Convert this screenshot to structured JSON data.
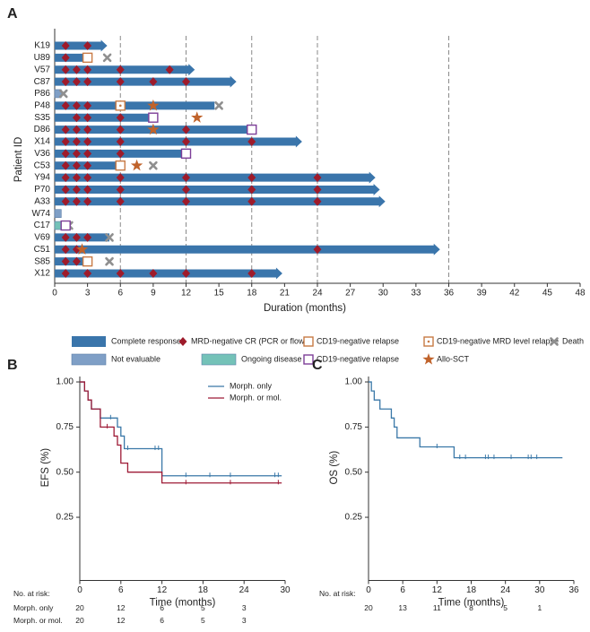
{
  "chart_data": [
    {
      "type": "swimmer",
      "panel": "A",
      "xlabel": "Duration (months)",
      "ylabel": "Patient ID",
      "categories": [
        "K19",
        "U89",
        "V57",
        "C87",
        "P86",
        "P48",
        "S35",
        "D86",
        "X14",
        "V36",
        "C53",
        "Y94",
        "P70",
        "A33",
        "W74",
        "C17",
        "V69",
        "C51",
        "S85",
        "X12"
      ],
      "xlim": [
        0,
        48
      ],
      "xticks": [
        0,
        3,
        6,
        9,
        12,
        15,
        18,
        21,
        24,
        27,
        30,
        33,
        36,
        39,
        42,
        45,
        48
      ],
      "reference_lines": [
        6,
        12,
        18,
        24,
        36
      ],
      "bars": [
        {
          "name": "Complete response",
          "color": "#3a75ab",
          "values": [
            4.8,
            2.6,
            12.8,
            16.6,
            null,
            14.6,
            9,
            18,
            22.6,
            12,
            6,
            29.3,
            29.7,
            30.2,
            null,
            null,
            5,
            35.2,
            3,
            20.8
          ]
        },
        {
          "name": "Not evaluable",
          "color": "#7f9fc6",
          "values": [
            null,
            null,
            null,
            null,
            0.6,
            null,
            null,
            null,
            null,
            null,
            null,
            null,
            null,
            null,
            0.6,
            null,
            null,
            null,
            null,
            null
          ]
        },
        {
          "name": "Ongoing disease",
          "color": "#74c2b8",
          "values": [
            null,
            null,
            null,
            null,
            null,
            null,
            null,
            null,
            null,
            null,
            null,
            null,
            null,
            null,
            null,
            0.7,
            null,
            null,
            null,
            null
          ]
        }
      ],
      "arrow": [
        true,
        false,
        true,
        true,
        false,
        false,
        false,
        false,
        true,
        false,
        false,
        true,
        true,
        true,
        false,
        false,
        false,
        true,
        false,
        true
      ],
      "events": [
        {
          "name": "MRD-negative CR (PCR or flow)",
          "color": "#9e1b2b",
          "shape": "diamond",
          "rows": [
            "K19",
            "K19",
            "U89",
            "V57",
            "V57",
            "V57",
            "V57",
            "V57",
            "C87",
            "C87",
            "C87",
            "C87",
            "C87",
            "C87",
            "P48",
            "P48",
            "P48",
            "S35",
            "S35",
            "S35",
            "D86",
            "D86",
            "D86",
            "D86",
            "D86",
            "X14",
            "X14",
            "X14",
            "X14",
            "X14",
            "X14",
            "V36",
            "V36",
            "V36",
            "V36",
            "C53",
            "C53",
            "C53",
            "Y94",
            "Y94",
            "Y94",
            "Y94",
            "Y94",
            "Y94",
            "Y94",
            "P70",
            "P70",
            "P70",
            "P70",
            "P70",
            "P70",
            "P70",
            "A33",
            "A33",
            "A33",
            "A33",
            "A33",
            "A33",
            "A33",
            "V69",
            "V69",
            "V69",
            "C51",
            "C51",
            "C51",
            "S85",
            "S85",
            "X12",
            "X12",
            "X12",
            "X12",
            "X12",
            "X12"
          ],
          "x": [
            1,
            3,
            1,
            1,
            2,
            3,
            6,
            10.5,
            1,
            2,
            3,
            6,
            9,
            12,
            1,
            2,
            3,
            2,
            3,
            6,
            1,
            2,
            3,
            6,
            12,
            1,
            2,
            3,
            6,
            12,
            18,
            1,
            2,
            3,
            6,
            1,
            2,
            3,
            1,
            2,
            3,
            6,
            12,
            18,
            24,
            1,
            2,
            3,
            6,
            12,
            18,
            24,
            1,
            2,
            3,
            6,
            12,
            18,
            24,
            1,
            2,
            3,
            1,
            2,
            24,
            1,
            2,
            1,
            3,
            6,
            9,
            12,
            18
          ]
        },
        {
          "name": "CD19-negative relapse",
          "color": "#c87a45",
          "shape": "square",
          "rows": [
            "U89",
            "C53",
            "S85"
          ],
          "x": [
            3,
            6,
            3
          ]
        },
        {
          "name": "CD19-negative MRD level relapse",
          "color": "#c87a45",
          "shape": "dotted-square",
          "rows": [
            "P48"
          ],
          "x": [
            6
          ]
        },
        {
          "name": "Death",
          "color": "#8f8f8f",
          "shape": "cross",
          "rows": [
            "U89",
            "P86",
            "P48",
            "C53",
            "C17",
            "V69",
            "S85"
          ],
          "x": [
            4.8,
            0.8,
            15,
            9,
            1.3,
            5,
            5
          ]
        },
        {
          "name": "CD19-negative relapse",
          "color": "#7d3f98",
          "shape": "square",
          "rows": [
            "S35",
            "D86",
            "V36",
            "C17"
          ],
          "x": [
            9,
            18,
            12,
            1
          ]
        },
        {
          "name": "Allo-SCT",
          "color": "#c0632b",
          "shape": "star",
          "rows": [
            "P48",
            "S35",
            "D86",
            "C53",
            "C51"
          ],
          "x": [
            9,
            13,
            9,
            7.5,
            2.5
          ]
        }
      ]
    },
    {
      "type": "km",
      "panel": "B",
      "xlabel": "Time (months)",
      "ylabel": "EFS (%)",
      "xlim": [
        0,
        30
      ],
      "xticks": [
        0,
        6,
        12,
        18,
        24,
        30
      ],
      "ylim": [
        -0.1,
        1.03
      ],
      "yticks": [
        {
          "value": 0.25,
          "label": "0.25"
        },
        {
          "value": 0.5,
          "label": "0.50"
        },
        {
          "value": 0.75,
          "label": "0.75"
        },
        {
          "value": 1,
          "label": "1.00"
        }
      ],
      "legend": "upper right",
      "series": [
        {
          "name": "Morph. only",
          "color": "#3a78a8",
          "x": [
            0,
            0.7,
            1.2,
            1.7,
            3,
            5.5,
            6,
            6.5,
            12,
            29.5
          ],
          "values": [
            1,
            0.95,
            0.9,
            0.85,
            0.8,
            0.75,
            0.7,
            0.63,
            0.48,
            0.48
          ],
          "censor": [
            4.5,
            7,
            11,
            11.5,
            15.5,
            19,
            22,
            28.5,
            29
          ]
        },
        {
          "name": "Morph. or mol.",
          "color": "#9e1b36",
          "x": [
            0,
            0.7,
            1.2,
            1.7,
            3,
            5,
            5.5,
            6,
            7,
            12,
            29.5
          ],
          "values": [
            1,
            0.95,
            0.9,
            0.85,
            0.75,
            0.7,
            0.65,
            0.55,
            0.5,
            0.44,
            0.44
          ],
          "censor": [
            4,
            15.5,
            22,
            29
          ]
        }
      ],
      "at_risk": {
        "title": "No. at risk:",
        "x": [
          0,
          6,
          12,
          18,
          24
        ],
        "rows": [
          {
            "name": "Morph. only",
            "values": [
              20,
              12,
              6,
              5,
              3
            ]
          },
          {
            "name": "Morph. or mol.",
            "values": [
              20,
              12,
              6,
              5,
              3
            ]
          }
        ]
      }
    },
    {
      "type": "km",
      "panel": "C",
      "xlabel": "Time (months)",
      "ylabel": "OS (%)",
      "xlim": [
        0,
        36
      ],
      "xticks": [
        0,
        6,
        12,
        18,
        24,
        30,
        36
      ],
      "ylim": [
        -0.1,
        1.03
      ],
      "yticks": [
        {
          "value": 0.25,
          "label": "0.25"
        },
        {
          "value": 0.5,
          "label": "0.50"
        },
        {
          "value": 0.75,
          "label": "0.75"
        },
        {
          "value": 1,
          "label": "1.00"
        }
      ],
      "series": [
        {
          "color": "#3a78a8",
          "x": [
            0,
            0.5,
            1,
            2,
            4,
            4.5,
            5,
            9,
            15,
            34
          ],
          "values": [
            1,
            0.95,
            0.9,
            0.85,
            0.8,
            0.75,
            0.69,
            0.64,
            0.58,
            0.58
          ],
          "censor": [
            12,
            16,
            17,
            20.5,
            21,
            22,
            25,
            28,
            28.5,
            29.5
          ]
        }
      ],
      "at_risk": {
        "title": "No. at risk:",
        "x": [
          0,
          6,
          12,
          18,
          24,
          30
        ],
        "rows": [
          {
            "values": [
              20,
              13,
              11,
              8,
              5,
              1
            ]
          }
        ]
      }
    }
  ]
}
